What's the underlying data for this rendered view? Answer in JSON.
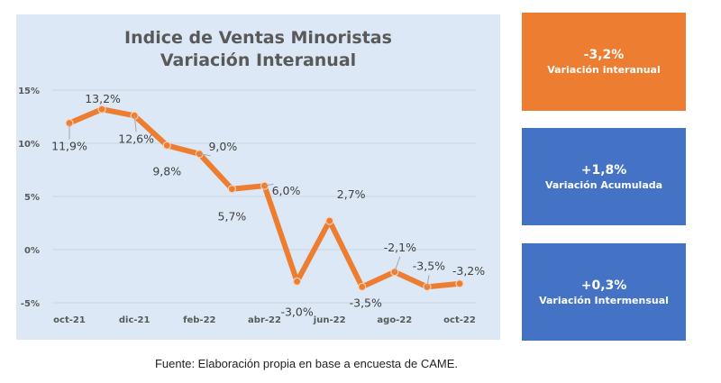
{
  "colors": {
    "panel_bg": "#dce8f5",
    "line": "#ed7d31",
    "orange_card": "#ed7d31",
    "blue_card": "#4472c4",
    "grid": "#c9d3de",
    "axis_text": "#595959",
    "label_text": "#404040"
  },
  "chart_data": {
    "type": "line",
    "title": "Indice de Ventas Minoristas",
    "subtitle": "Variación Interanual",
    "xlabel": "",
    "ylabel": "",
    "ylim": [
      -5,
      15
    ],
    "grid": true,
    "legend": "none",
    "y_ticks": [
      15,
      10,
      5,
      0,
      -5
    ],
    "y_tick_labels": [
      "15%",
      "10%",
      "5%",
      "0%",
      "-5%"
    ],
    "categories": [
      "oct-21",
      "nov-21",
      "dic-21",
      "ene-22",
      "feb-22",
      "mar-22",
      "abr-22",
      "may-22",
      "jun-22",
      "jul-22",
      "ago-22",
      "sep-22",
      "oct-22"
    ],
    "x_tick_labels": [
      "oct-21",
      "dic-21",
      "feb-22",
      "abr-22",
      "jun-22",
      "ago-22",
      "oct-22"
    ],
    "series": [
      {
        "name": "Variación Interanual",
        "values": [
          11.9,
          13.2,
          12.6,
          9.8,
          9.0,
          5.7,
          6.0,
          -3.0,
          2.7,
          -3.5,
          -2.1,
          -3.5,
          -3.2
        ],
        "labels": [
          "11,9%",
          "13,2%",
          "12,6%",
          "9,8%",
          "9,0%",
          "5,7%",
          "6,0%",
          "-3,0%",
          "2,7%",
          "-3,5%",
          "-2,1%",
          "-3,5%",
          "-3,2%"
        ]
      }
    ]
  },
  "cards": [
    {
      "value": "-3,2%",
      "label": "Variación interanual"
    },
    {
      "value": "+1,8%",
      "label": "Variación Acumulada"
    },
    {
      "value": "+0,3%",
      "label": "Variación Intermensual"
    }
  ],
  "source": "Fuente: Elaboración propia en base a encuesta de CAME."
}
